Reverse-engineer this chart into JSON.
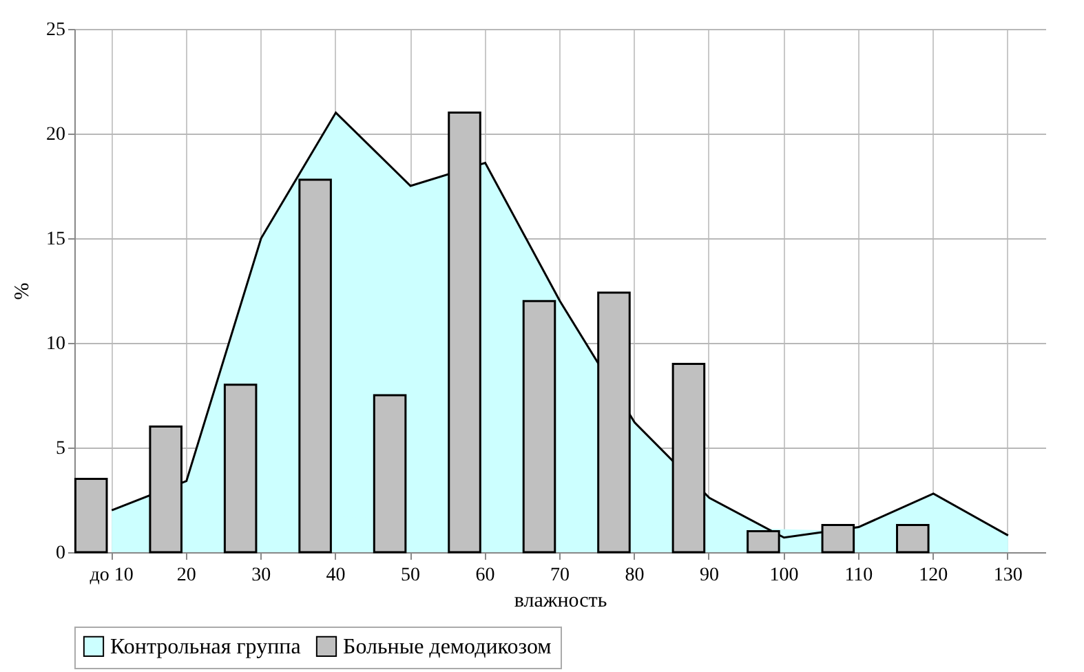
{
  "chart_data": {
    "type": "bar",
    "xlabel": "влажность",
    "ylabel": "%",
    "categories": [
      "до 10",
      "20",
      "30",
      "40",
      "50",
      "60",
      "70",
      "80",
      "90",
      "100",
      "110",
      "120",
      "130"
    ],
    "series": [
      {
        "name": "Контрольная группа",
        "type": "area",
        "color": "#ccffff",
        "values": [
          2.0,
          3.4,
          15,
          21,
          17.5,
          18.6,
          12.0,
          6.2,
          2.6,
          0.7,
          1.2,
          2.8,
          0.8
        ]
      },
      {
        "name": "Больные демодикозом",
        "color": "#c0c0c0",
        "values": [
          3.5,
          6.0,
          8.0,
          17.8,
          7.5,
          21.0,
          12.0,
          12.4,
          9.0,
          1.0,
          1.3,
          1.3,
          null
        ]
      }
    ],
    "ylim": [
      0,
      25
    ],
    "yticks": [
      0,
      5,
      10,
      15,
      20,
      25
    ],
    "grid": true,
    "legend": "bottom"
  }
}
